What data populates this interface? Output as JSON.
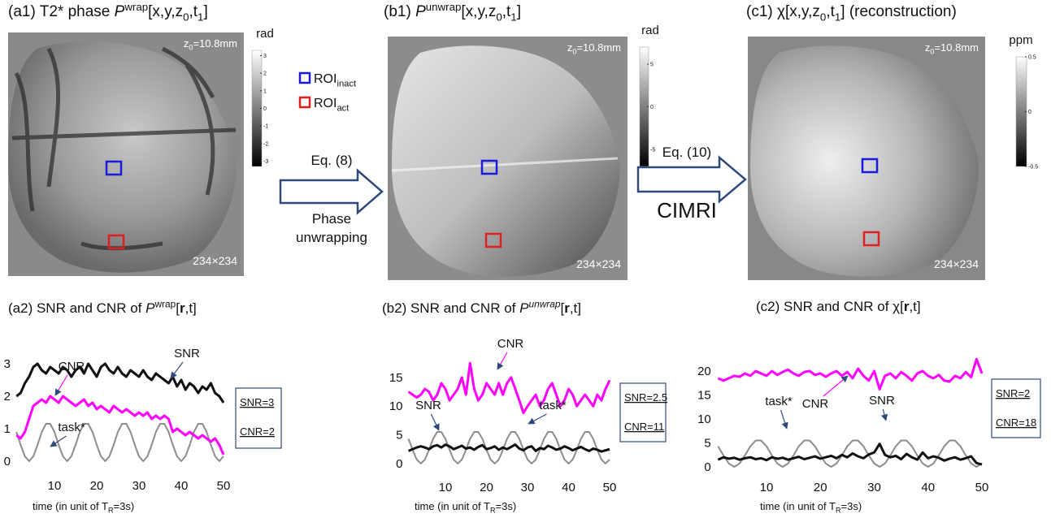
{
  "panels": [
    {
      "title": [
        {
          "text": "(a1) T2* phase "
        },
        {
          "text": "P",
          "style": "italic"
        },
        {
          "text": "wrap",
          "style": "sup"
        },
        {
          "text": "[x,y,z"
        },
        {
          "text": "0",
          "style": "sub"
        },
        {
          "text": ",t"
        },
        {
          "text": "1",
          "style": "sub"
        },
        {
          "text": "]"
        }
      ],
      "depth": [
        {
          "text": "z"
        },
        {
          "text": "0",
          "style": "sub"
        },
        {
          "text": "=10.8mm"
        }
      ],
      "size": "234×234",
      "colorbar": {
        "label": "rad",
        "lim": [
          -3.3,
          3.3
        ],
        "ticks": [
          3,
          2,
          1,
          0,
          -1,
          -2,
          -3
        ]
      }
    },
    {
      "title": [
        {
          "text": "(b1)  "
        },
        {
          "text": "P",
          "style": "italic"
        },
        {
          "text": "unwrap",
          "style": "sup"
        },
        {
          "text": "[x,y,z"
        },
        {
          "text": "0",
          "style": "sub"
        },
        {
          "text": ",t"
        },
        {
          "text": "1",
          "style": "sub"
        },
        {
          "text": "]"
        }
      ],
      "depth": [
        {
          "text": "z"
        },
        {
          "text": "0",
          "style": "sub"
        },
        {
          "text": "=10.8mm"
        }
      ],
      "size": "234×234",
      "colorbar": {
        "label": "rad",
        "lim": [
          -7,
          7
        ],
        "ticks": [
          5,
          0,
          -5
        ]
      }
    },
    {
      "title": [
        {
          "text": "(c1)  χ[x,y,z"
        },
        {
          "text": "0",
          "style": "sub"
        },
        {
          "text": ",t"
        },
        {
          "text": "1",
          "style": "sub"
        },
        {
          "text": "] (reconstruction)"
        }
      ],
      "depth": [
        {
          "text": "z"
        },
        {
          "text": "0",
          "style": "sub"
        },
        {
          "text": "=10.8mm"
        }
      ],
      "size": "234×234",
      "colorbar": {
        "label": "ppm",
        "lim": [
          -0.5,
          0.5
        ],
        "ticks": [
          0.5,
          0,
          -0.5
        ]
      }
    }
  ],
  "legend": [
    {
      "parts": [
        {
          "text": "ROI"
        },
        {
          "text": "inact",
          "style": "sub"
        }
      ],
      "color": "#1a1adc"
    },
    {
      "parts": [
        {
          "text": "ROI"
        },
        {
          "text": "act",
          "style": "sub"
        }
      ],
      "color": "#e02020"
    }
  ],
  "arrows": [
    {
      "above": [
        "Eq. (8)"
      ],
      "below": [
        "Phase",
        "unwrapping"
      ]
    },
    {
      "above": [
        "Eq. (10)"
      ],
      "below": [
        "CIMRI"
      ]
    }
  ],
  "chart_data": [
    {
      "type": "line",
      "title": [
        {
          "text": "(a2) SNR and CNR of "
        },
        {
          "text": "P",
          "style": "italic"
        },
        {
          "text": "wrap",
          "style": "sup"
        },
        {
          "text": "["
        },
        {
          "text": "r",
          "style": "bold"
        },
        {
          "text": ",t]"
        }
      ],
      "xlabel": [
        {
          "text": "time (in unit of T"
        },
        {
          "text": "R",
          "style": "sub"
        },
        {
          "text": "=3s)"
        }
      ],
      "x": [
        1,
        2,
        3,
        4,
        5,
        6,
        7,
        8,
        9,
        10,
        11,
        12,
        13,
        14,
        15,
        16,
        17,
        18,
        19,
        20,
        21,
        22,
        23,
        24,
        25,
        26,
        27,
        28,
        29,
        30,
        31,
        32,
        33,
        34,
        35,
        36,
        37,
        38,
        39,
        40,
        41,
        42,
        43,
        44,
        45,
        46,
        47,
        48,
        49,
        50
      ],
      "xlim": [
        0,
        50
      ],
      "xticks": [
        10,
        20,
        30,
        40,
        50
      ],
      "ylim": [
        -0.5,
        3.5
      ],
      "yticks": [
        0,
        1,
        2,
        3
      ],
      "grid": false,
      "series": [
        {
          "name": "task*",
          "color": "#8c8c8c",
          "line_width": 2,
          "values": [
            0.9,
            0.5,
            0.15,
            0,
            0.15,
            0.5,
            0.9,
            1.15,
            1.15,
            0.9,
            0.5,
            0.15,
            0,
            0.15,
            0.5,
            0.9,
            1.15,
            1.15,
            0.9,
            0.5,
            0.15,
            0,
            0.15,
            0.5,
            0.9,
            1.15,
            1.15,
            0.9,
            0.5,
            0.15,
            0,
            0.15,
            0.5,
            0.9,
            1.15,
            1.15,
            0.9,
            0.5,
            0.15,
            0,
            0.15,
            0.5,
            0.9,
            1.15,
            1.15,
            0.9,
            0.5,
            0.15,
            0,
            0.15
          ]
        },
        {
          "name": "SNR",
          "color": "#111111",
          "line_width": 3,
          "values": [
            2.0,
            2.1,
            2.4,
            2.6,
            2.9,
            3.0,
            2.8,
            2.7,
            2.9,
            2.8,
            2.7,
            2.9,
            2.8,
            2.6,
            2.8,
            2.9,
            2.7,
            3.0,
            2.8,
            2.6,
            2.9,
            3.0,
            2.8,
            2.7,
            2.9,
            2.7,
            2.6,
            2.8,
            2.7,
            2.6,
            2.8,
            2.6,
            2.5,
            2.7,
            2.6,
            2.5,
            2.4,
            2.6,
            2.3,
            2.5,
            2.2,
            2.4,
            2.3,
            2.1,
            2.3,
            2.2,
            2.4,
            2.1,
            2.0,
            1.8
          ]
        },
        {
          "name": "CNR",
          "color": "#ff00ff",
          "line_width": 3,
          "values": [
            0.8,
            0.7,
            0.9,
            1.3,
            1.7,
            1.8,
            1.9,
            1.8,
            2.0,
            1.9,
            1.8,
            2.0,
            1.9,
            1.8,
            1.7,
            1.8,
            1.9,
            1.7,
            1.8,
            1.6,
            1.7,
            1.6,
            1.5,
            1.7,
            1.6,
            1.5,
            1.6,
            1.5,
            1.4,
            1.5,
            1.4,
            1.5,
            1.3,
            1.4,
            1.3,
            1.4,
            1.3,
            0.9,
            1.0,
            0.9,
            0.8,
            0.9,
            0.8,
            0.7,
            0.8,
            0.7,
            0.6,
            0.7,
            0.5,
            0.2
          ]
        }
      ],
      "notes": [
        "SNR=3",
        "CNR=2"
      ]
    },
    {
      "type": "line",
      "title": [
        {
          "text": "(b2) SNR and CNR of "
        },
        {
          "text": "P",
          "style": "italic"
        },
        {
          "text": "unwrap",
          "style": "italic sup"
        },
        {
          "text": "["
        },
        {
          "text": "r",
          "style": "bold"
        },
        {
          "text": ",t]"
        }
      ],
      "xlabel": [
        {
          "text": "time (in unit of T"
        },
        {
          "text": "R",
          "style": "sub"
        },
        {
          "text": "=3s)"
        }
      ],
      "x": [
        1,
        2,
        3,
        4,
        5,
        6,
        7,
        8,
        9,
        10,
        11,
        12,
        13,
        14,
        15,
        16,
        17,
        18,
        19,
        20,
        21,
        22,
        23,
        24,
        25,
        26,
        27,
        28,
        29,
        30,
        31,
        32,
        33,
        34,
        35,
        36,
        37,
        38,
        39,
        40,
        41,
        42,
        43,
        44,
        45,
        46,
        47,
        48,
        49,
        50
      ],
      "xlim": [
        0,
        50
      ],
      "xticks": [
        10,
        20,
        30,
        40,
        50
      ],
      "ylim": [
        -1,
        19
      ],
      "yticks": [
        0,
        5,
        10,
        15
      ],
      "grid": false,
      "series": [
        {
          "name": "task*",
          "color": "#8c8c8c",
          "line_width": 2,
          "values": [
            4.3,
            2.4,
            0.7,
            0,
            0.7,
            2.4,
            4.3,
            5.5,
            5.5,
            4.3,
            2.4,
            0.7,
            0,
            0.7,
            2.4,
            4.3,
            5.5,
            5.5,
            4.3,
            2.4,
            0.7,
            0,
            0.7,
            2.4,
            4.3,
            5.5,
            5.5,
            4.3,
            2.4,
            0.7,
            0,
            0.7,
            2.4,
            4.3,
            5.5,
            5.5,
            4.3,
            2.4,
            0.7,
            0,
            0.7,
            2.4,
            4.3,
            5.5,
            5.5,
            4.3,
            2.4,
            0.7,
            0,
            0.7
          ]
        },
        {
          "name": "SNR",
          "color": "#111111",
          "line_width": 3,
          "values": [
            2.2,
            2.5,
            2.8,
            3.0,
            2.8,
            2.5,
            3.0,
            3.2,
            2.8,
            3.3,
            3.0,
            2.5,
            2.8,
            3.1,
            2.6,
            2.8,
            2.4,
            2.9,
            3.2,
            2.5,
            2.7,
            3.0,
            2.4,
            2.8,
            2.5,
            2.9,
            3.3,
            2.6,
            2.3,
            2.8,
            3.0,
            2.2,
            2.7,
            2.5,
            3.1,
            2.8,
            2.4,
            2.6,
            3.0,
            2.7,
            2.3,
            2.6,
            2.9,
            2.5,
            2.2,
            2.6,
            2.4,
            2.1,
            2.3,
            2.5
          ]
        },
        {
          "name": "CNR",
          "color": "#ff00ff",
          "line_width": 3,
          "values": [
            12.5,
            12,
            11.5,
            12,
            13,
            12.5,
            11,
            12,
            14,
            13,
            11,
            12,
            13,
            15,
            12,
            17.5,
            13,
            11,
            12,
            14,
            13,
            12,
            14,
            12,
            14,
            15,
            13,
            11,
            8.8,
            10,
            11,
            12,
            10,
            11,
            13,
            14,
            12,
            10,
            11,
            13,
            12,
            10,
            11,
            12,
            11,
            10,
            12,
            11,
            13,
            14.5
          ]
        }
      ],
      "notes": [
        "SNR=2.5",
        "CNR=11"
      ]
    },
    {
      "type": "line",
      "title": [
        {
          "text": "(c2) SNR and CNR of χ["
        },
        {
          "text": "r",
          "style": "bold"
        },
        {
          "text": ",t]"
        }
      ],
      "xlabel": [
        {
          "text": "time (in unit of T"
        },
        {
          "text": "R",
          "style": "sub"
        },
        {
          "text": "=3s)"
        }
      ],
      "x": [
        1,
        2,
        3,
        4,
        5,
        6,
        7,
        8,
        9,
        10,
        11,
        12,
        13,
        14,
        15,
        16,
        17,
        18,
        19,
        20,
        21,
        22,
        23,
        24,
        25,
        26,
        27,
        28,
        29,
        30,
        31,
        32,
        33,
        34,
        35,
        36,
        37,
        38,
        39,
        40,
        41,
        42,
        43,
        44,
        45,
        46,
        47,
        48,
        49,
        50
      ],
      "xlim": [
        0,
        50
      ],
      "xticks": [
        10,
        20,
        30,
        40,
        50
      ],
      "ylim": [
        -1,
        23
      ],
      "yticks": [
        0,
        5,
        10,
        15,
        20
      ],
      "grid": false,
      "series": [
        {
          "name": "task*",
          "color": "#8c8c8c",
          "line_width": 2,
          "values": [
            4.3,
            2.4,
            0.7,
            0,
            0.7,
            2.4,
            4.3,
            5.5,
            5.5,
            4.3,
            2.4,
            0.7,
            0,
            0.7,
            2.4,
            4.3,
            5.5,
            5.5,
            4.3,
            2.4,
            0.7,
            0,
            0.7,
            2.4,
            4.3,
            5.5,
            5.5,
            4.3,
            2.4,
            0.7,
            0,
            0.7,
            2.4,
            4.3,
            5.5,
            5.5,
            4.3,
            2.4,
            0.7,
            0,
            0.7,
            2.4,
            4.3,
            5.5,
            5.5,
            4.3,
            2.4,
            0.7,
            0,
            0.7
          ]
        },
        {
          "name": "SNR",
          "color": "#111111",
          "line_width": 3,
          "values": [
            1.5,
            2.0,
            1.7,
            1.9,
            1.5,
            1.8,
            2.0,
            1.6,
            1.8,
            1.4,
            2.0,
            1.7,
            1.9,
            1.5,
            1.8,
            2.1,
            1.6,
            1.9,
            2.2,
            1.7,
            2.0,
            2.3,
            1.8,
            2.5,
            2.0,
            2.8,
            2.2,
            1.8,
            2.6,
            3.0,
            4.8,
            2.5,
            2.0,
            2.3,
            1.6,
            2.7,
            2.0,
            1.5,
            3.0,
            1.8,
            2.2,
            1.9,
            1.3,
            1.7,
            2.0,
            1.5,
            1.8,
            2.2,
            0.8,
            0.5
          ]
        },
        {
          "name": "CNR",
          "color": "#ff00ff",
          "line_width": 3,
          "values": [
            18.5,
            18,
            18.5,
            19,
            18.8,
            19.5,
            19,
            20,
            19.5,
            19,
            20,
            19.2,
            19.8,
            20.3,
            19.5,
            19,
            19.8,
            20,
            19.2,
            19.5,
            18.8,
            19.5,
            20,
            19,
            19.8,
            18.5,
            20.5,
            19,
            18,
            20,
            16.2,
            19,
            19.5,
            18.5,
            19.8,
            19,
            18,
            19.5,
            20,
            19,
            18.5,
            19.2,
            18,
            17.8,
            19,
            18.5,
            19.8,
            18.7,
            22.5,
            19.5
          ]
        }
      ],
      "notes": [
        "SNR=2",
        "CNR=18"
      ]
    }
  ]
}
